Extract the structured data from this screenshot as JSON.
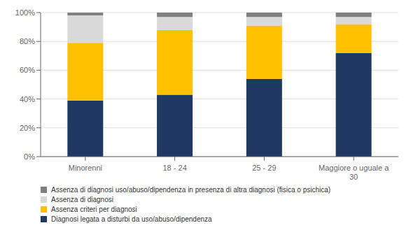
{
  "chart_data": {
    "type": "bar",
    "stacked": true,
    "categories": [
      "Minorenni",
      "18 - 24",
      "25 - 29",
      "Maggiore o uguale a\n30"
    ],
    "series": [
      {
        "name": "Diagnosi legata a disturbi da uso/abuso/dipendenza",
        "color": "#1F3864",
        "values": [
          39,
          43,
          54,
          72
        ]
      },
      {
        "name": "Assenza criteri per diagnosi",
        "color": "#FFC000",
        "values": [
          40,
          45,
          37,
          20
        ]
      },
      {
        "name": "Assenza di diagnosi",
        "color": "#D9D9D9",
        "values": [
          19,
          9,
          6,
          5
        ]
      },
      {
        "name": "Assenza di diagnosi uso/abuso/dipendenza in presenza di altra diagnosi (fisica o psichica)",
        "color": "#808080",
        "values": [
          2,
          3,
          3,
          3
        ]
      }
    ],
    "ylim": [
      0,
      100
    ],
    "yticks": [
      {
        "value": 0,
        "label": "0%"
      },
      {
        "value": 20,
        "label": "20%"
      },
      {
        "value": 40,
        "label": "40%"
      },
      {
        "value": 60,
        "label": "60%"
      },
      {
        "value": 80,
        "label": "80%"
      },
      {
        "value": 100,
        "label": "100%"
      }
    ],
    "grid": true,
    "legend": "bottom"
  }
}
